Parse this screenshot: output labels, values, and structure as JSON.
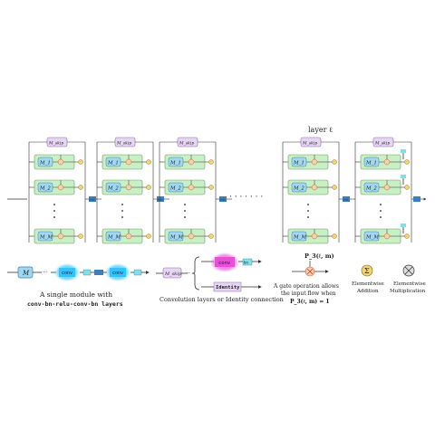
{
  "layer_label": "layer ℓ",
  "skip_label": "M_skip",
  "module_labels": [
    "M_1",
    "M_2",
    "M_M"
  ],
  "relu_label": "relu",
  "ellipsis": "· · · · · · ·",
  "legend": {
    "module_symbol": "M",
    "conv_label": "conv",
    "small_label": "bn",
    "caption_line1": "A single module with",
    "caption_line2": "conv-bn-relu-conv-bn layers",
    "skip_symbol": "M_skip",
    "conv_option": "conv",
    "bn_option": "bn",
    "identity_option": "Identity",
    "skip_caption": "Convolution layers or Identity connection",
    "gate_symbol": "P_3(ℓ, m)",
    "gate_caption_line1": "A gate operation allows",
    "gate_caption_line2": "the input flow when",
    "gate_caption_line3": "P_3(ℓ, m) = 1",
    "add_caption_line1": "Elementwise",
    "add_caption_line2": "Addition",
    "mul_caption_line1": "Elementwise",
    "mul_caption_line2": "Multiplication"
  },
  "colors": {
    "block_fill": "#c9f0c4",
    "block_stroke": "#6a9a64",
    "module_fill": "#9fd8f0",
    "module_stroke": "#3f7fa8",
    "skip_fill": "#e6d6f2",
    "skip_stroke": "#8c6aa8",
    "gate_fill": "#f7cfa8",
    "add_fill": "#f5d56a",
    "relu_fill": "#3a7fc4",
    "conv_glow": "#2ec4ff",
    "conv_pink": "#e84fd6"
  }
}
